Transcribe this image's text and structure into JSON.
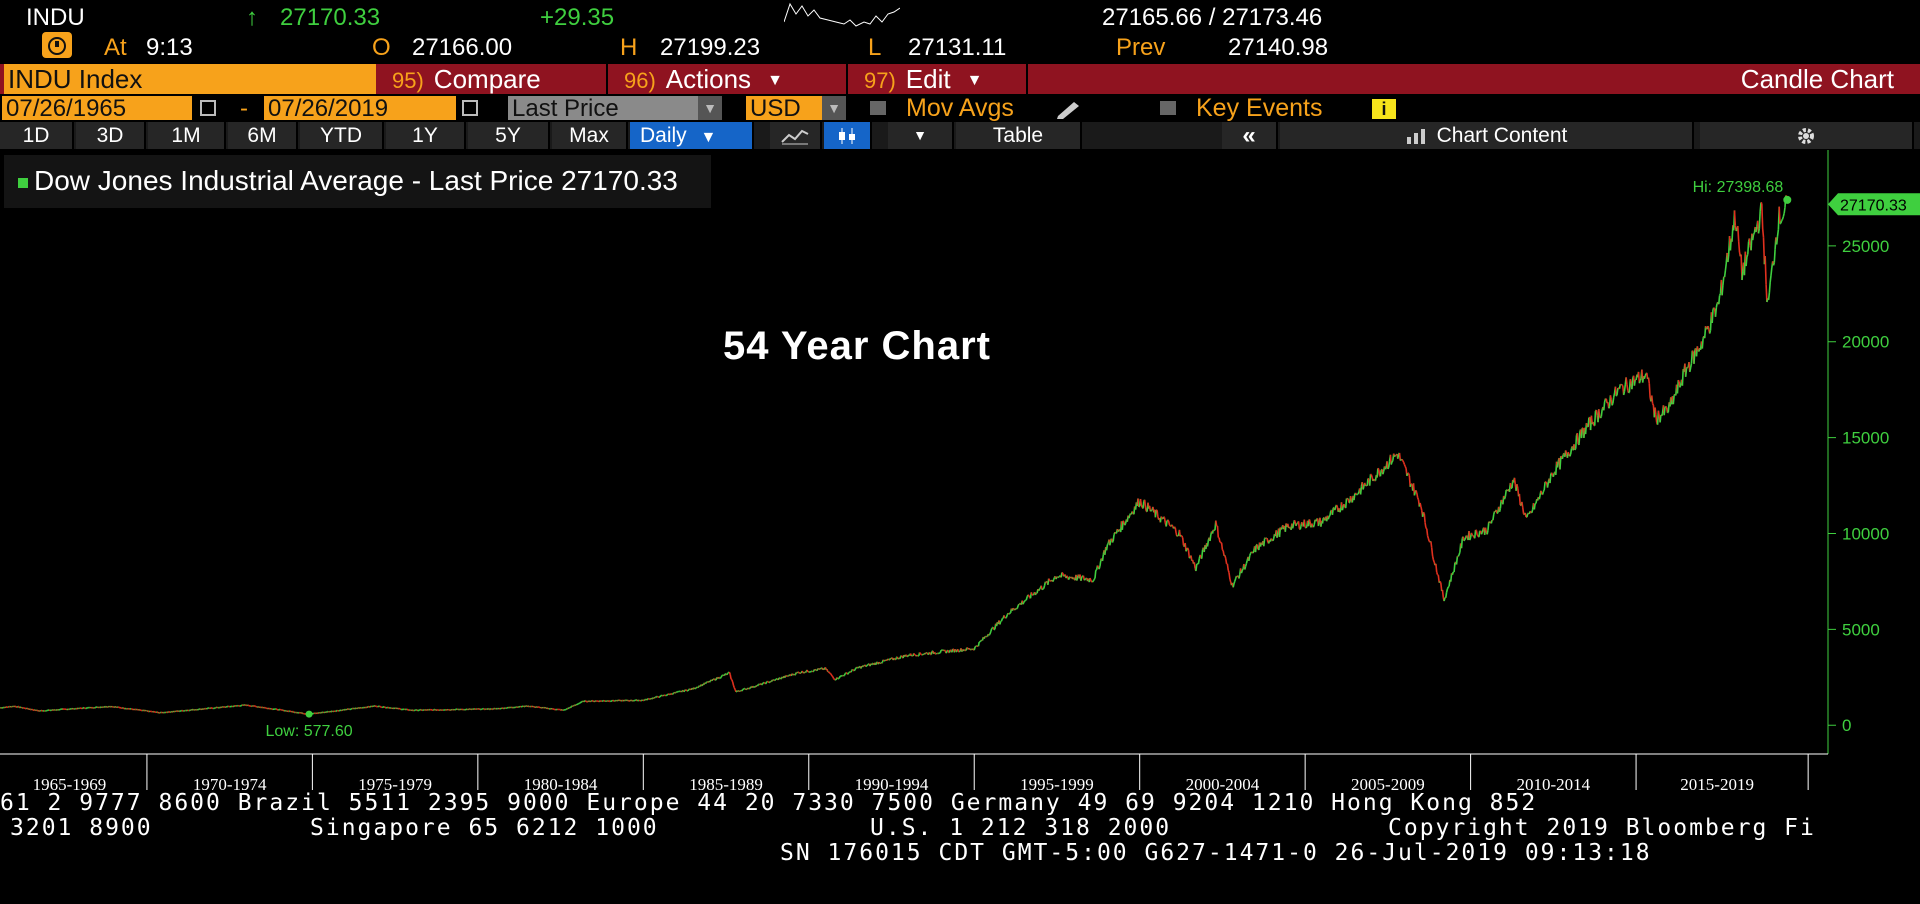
{
  "quote": {
    "ticker": "INDU",
    "arrow": "↑",
    "last": "27170.33",
    "change": "+29.35",
    "bid_ask": "27165.66 / 27173.46",
    "at_label": "At",
    "time": "9:13",
    "open_label": "O",
    "open": "27166.00",
    "high_label": "H",
    "high": "27199.23",
    "low_label": "L",
    "low": "27131.11",
    "prev_label": "Prev",
    "prev": "27140.98"
  },
  "toolbar": {
    "security": "INDU Index",
    "buttons": [
      {
        "num": "95)",
        "label": "Compare",
        "caret": ""
      },
      {
        "num": "96)",
        "label": "Actions",
        "caret": "▼"
      },
      {
        "num": "97)",
        "label": "Edit",
        "caret": "▼"
      }
    ],
    "chart_type": "Candle Chart"
  },
  "options": {
    "start_date": "07/26/1965",
    "dash": "-",
    "end_date": "07/26/2019",
    "field": "Last Price",
    "currency": "USD",
    "mov_avgs": "Mov Avgs",
    "key_events": "Key Events"
  },
  "timeframes": {
    "items": [
      "1D",
      "3D",
      "1M",
      "6M",
      "YTD",
      "1Y",
      "5Y",
      "Max"
    ],
    "period": "Daily",
    "period_caret": "▼",
    "table": "Table",
    "collapse": "«",
    "chart_content": "Chart Content",
    "settings_icon": "gear-icon"
  },
  "colors": {
    "up": "#3fcf3f",
    "down": "#e0301e",
    "orange": "#f7a21b",
    "bar_red": "#8f1320",
    "active_blue": "#1565c8"
  },
  "chart_data": {
    "type": "line",
    "title": "54 Year Chart",
    "legend": "Dow Jones Industrial Average - Last Price 27170.33",
    "legend_position": "top-left",
    "series": [
      {
        "name": "Dow Jones Industrial Average - Last Price",
        "x": [
          1965.56,
          1966.0,
          1966.75,
          1968.9,
          1970.4,
          1973.0,
          1974.9,
          1976.9,
          1978.0,
          1980.5,
          1981.5,
          1982.6,
          1983.2,
          1985.0,
          1986.5,
          1987.6,
          1987.8,
          1988.5,
          1989.7,
          1990.5,
          1990.8,
          1991.5,
          1993.0,
          1995.0,
          1996.0,
          1997.5,
          1998.6,
          1999.0,
          2000.0,
          2001.2,
          2001.7,
          2002.3,
          2002.8,
          2003.5,
          2004.5,
          2005.5,
          2006.5,
          2007.8,
          2008.5,
          2009.2,
          2009.8,
          2010.5,
          2011.3,
          2011.7,
          2012.5,
          2013.5,
          2014.5,
          2015.3,
          2015.6,
          2016.0,
          2016.5,
          2017.0,
          2017.5,
          2018.0,
          2018.2,
          2018.8,
          2018.98,
          2019.3,
          2019.5,
          2019.57
        ],
        "values": [
          905,
          990,
          745,
          980,
          650,
          1050,
          578,
          1000,
          780,
          850,
          1000,
          780,
          1250,
          1300,
          1900,
          2720,
          1740,
          2100,
          2750,
          2950,
          2400,
          3000,
          3650,
          4000,
          5800,
          7800,
          7600,
          9300,
          11700,
          10000,
          8200,
          10500,
          7300,
          9200,
          10400,
          10600,
          12000,
          14165,
          11500,
          6547,
          9800,
          10200,
          12800,
          10700,
          13200,
          15500,
          17500,
          18300,
          16000,
          16500,
          18500,
          20000,
          22000,
          26600,
          23600,
          26800,
          21800,
          26400,
          26800,
          27398.68
        ]
      }
    ],
    "last_value": "27170.33",
    "hi_label": "Hi: 27398.68",
    "low_label": "Low: 577.60",
    "y_ticks": [
      "0",
      "5000",
      "10000",
      "15000",
      "20000",
      "25000"
    ],
    "ylim": [
      -1500,
      30000
    ],
    "x_ticks": [
      "1965-1969",
      "1970-1974",
      "1975-1979",
      "1980-1984",
      "1985-1989",
      "1990-1994",
      "1995-1999",
      "2000-2004",
      "2005-2009",
      "2010-2014",
      "2015-2019"
    ],
    "x_range": [
      1965.56,
      2020.8
    ],
    "grid": false
  },
  "footer": {
    "line1": "61 2 9777 8600 Brazil 5511 2395 9000 Europe 44 20 7330 7500 Germany 49 69 9204 1210 Hong Kong 852",
    "line2a": "3201 8900",
    "line2b": "Singapore 65 6212 1000",
    "line2c": "U.S. 1 212 318 2000",
    "line2d": "Copyright 2019 Bloomberg Fi",
    "line3": "SN 176015 CDT  GMT-5:00 G627-1471-0 26-Jul-2019 09:13:18"
  }
}
